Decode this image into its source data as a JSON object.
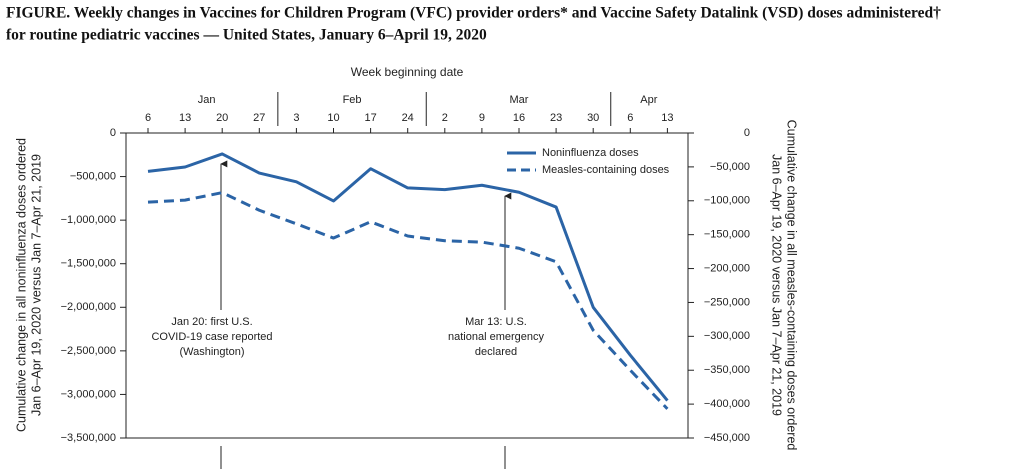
{
  "chart_data": {
    "type": "line",
    "title_lines": [
      "FIGURE. Weekly changes in Vaccines for Children Program (VFC) provider orders* and Vaccine Safety Datalink (VSD) doses administered†",
      "for routine pediatric vaccines — United States, January 6–April 19, 2020"
    ],
    "x_label": "Week beginning date",
    "months": [
      {
        "label": "Jan",
        "count": 4
      },
      {
        "label": "Feb",
        "count": 4
      },
      {
        "label": "Mar",
        "count": 5
      },
      {
        "label": "Apr",
        "count": 2
      }
    ],
    "categories": [
      "6",
      "13",
      "20",
      "27",
      "3",
      "10",
      "17",
      "24",
      "2",
      "9",
      "16",
      "23",
      "30",
      "6",
      "13"
    ],
    "y_label_lines": [
      "Cumulative change in all noninfluenza doses ordered",
      "Jan 6–Apr 19, 2020 versus Jan 7–Apr 21, 2019"
    ],
    "y2_label_lines": [
      "Cumulative change in all measles-containing doses ordered",
      "Jan 6–Apr 19, 2020 versus Jan 7–Apr 21, 2019"
    ],
    "ylim": [
      -3500000,
      0
    ],
    "yticks": [
      0,
      {
        "value": -500000,
        "label": "−500,000"
      },
      {
        "value": -1000000,
        "label": "−1,000,000"
      },
      {
        "value": -1500000,
        "label": "−1,500,000"
      },
      {
        "value": -2000000,
        "label": "−2,000,000"
      },
      {
        "value": -2500000,
        "label": "−2,500,000"
      },
      {
        "value": -3000000,
        "label": "−3,000,000"
      },
      {
        "value": -3500000,
        "label": "−3,500,000"
      }
    ],
    "y2lim": [
      -450000,
      0
    ],
    "y2ticks": [
      0,
      {
        "value": -50000,
        "label": "−50,000"
      },
      {
        "value": -100000,
        "label": "−100,000"
      },
      {
        "value": -150000,
        "label": "−150,000"
      },
      {
        "value": -200000,
        "label": "−200,000"
      },
      {
        "value": -250000,
        "label": "−250,000"
      },
      {
        "value": -300000,
        "label": "−300,000"
      },
      {
        "value": -350000,
        "label": "−350,000"
      },
      {
        "value": -400000,
        "label": "−400,000"
      },
      {
        "value": -450000,
        "label": "−450,000"
      }
    ],
    "series": [
      {
        "name": "Noninfluenza doses",
        "color": "#2b64a6",
        "dash": false,
        "values": [
          -440000,
          -390000,
          -240000,
          -460000,
          -560000,
          -780000,
          -410000,
          -630000,
          -650000,
          -600000,
          -680000,
          -850000,
          -2000000,
          -2550000,
          -3070000
        ]
      },
      {
        "name": "Measles-containing doses",
        "color": "#2b64a6",
        "dash": true,
        "axis": "y2",
        "values": [
          -102000,
          -99000,
          -88000,
          -114000,
          -134000,
          -155000,
          -131000,
          -152000,
          -159000,
          -161000,
          -170000,
          -190000,
          -291000,
          -350000,
          -407000
        ]
      }
    ],
    "annotations": [
      {
        "lines": [
          "Jan 20: first U.S.",
          "COVID-19 case reported",
          "(Washington)"
        ]
      },
      {
        "lines": [
          "Mar 13: U.S.",
          "national emergency",
          "declared"
        ]
      }
    ]
  }
}
